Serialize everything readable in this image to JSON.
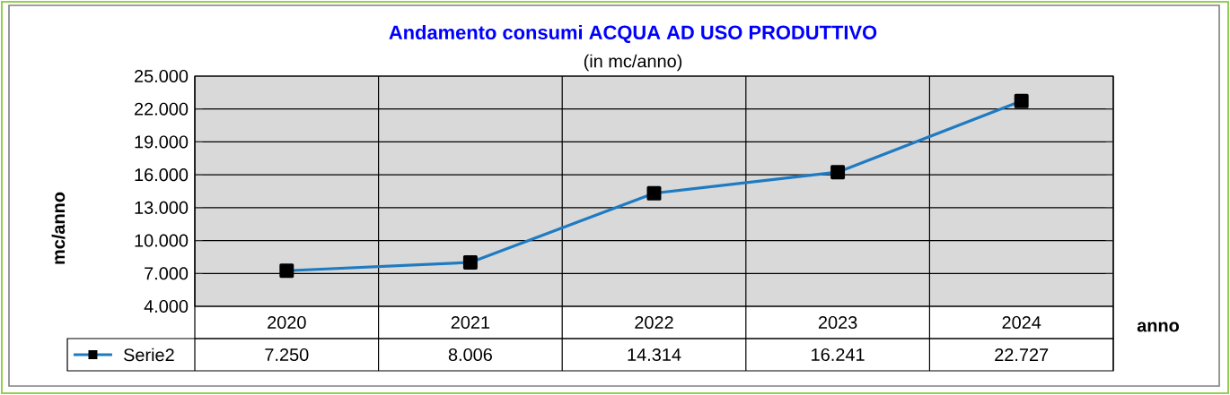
{
  "chart_data": {
    "type": "line",
    "title": "Andamento consumi ACQUA AD USO PRODUTTIVO",
    "subtitle": "(in mc/anno)",
    "xlabel": "anno",
    "ylabel": "mc/anno",
    "categories": [
      "2020",
      "2021",
      "2022",
      "2023",
      "2024"
    ],
    "series": [
      {
        "name": "Serie2",
        "color": "#1f7bc1",
        "values": [
          7250,
          8006,
          14314,
          16241,
          22727
        ],
        "value_labels": [
          "7.250",
          "8.006",
          "14.314",
          "16.241",
          "22.727"
        ]
      }
    ],
    "ylim": [
      4000,
      25000
    ],
    "yticks": [
      {
        "value": 4000,
        "label": "4.000"
      },
      {
        "value": 7000,
        "label": "7.000"
      },
      {
        "value": 10000,
        "label": "10.000"
      },
      {
        "value": 13000,
        "label": "13.000"
      },
      {
        "value": 16000,
        "label": "16.000"
      },
      {
        "value": 19000,
        "label": "19.000"
      },
      {
        "value": 22000,
        "label": "22.000"
      },
      {
        "value": 25000,
        "label": "25.000"
      }
    ],
    "grid": true,
    "legend": "bottom left",
    "marker": "square",
    "line_style": "solid"
  }
}
